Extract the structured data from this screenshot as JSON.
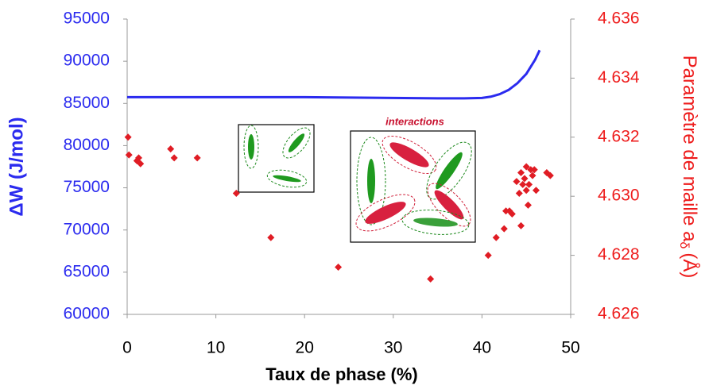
{
  "chart_data": {
    "type": "line",
    "xlabel": "Taux de phase (%)",
    "ylabel": "ΔW (J/mol)",
    "y2label": [
      "Paramètre de maille a",
      "δ",
      "(Å)"
    ],
    "annotation": "interactions",
    "xlim": [
      0,
      50
    ],
    "xticks": [
      0,
      10,
      20,
      30,
      40,
      50
    ],
    "ylim": [
      60000,
      95000
    ],
    "yticks": [
      60000,
      65000,
      70000,
      75000,
      80000,
      85000,
      90000,
      95000
    ],
    "y2lim": [
      4.626,
      4.636
    ],
    "y2ticks": [
      4.626,
      4.628,
      {
        "value": 4.63,
        "label": "4.630"
      },
      4.632,
      4.634,
      4.636
    ],
    "ycolor": "#2b2bef",
    "y2color": "#ee1c1c",
    "grid": false,
    "series": [
      {
        "type": "line",
        "axis": "y",
        "color": "#2b2bef",
        "x": [
          0,
          5,
          10,
          15,
          20,
          25,
          30,
          35,
          38,
          40,
          41,
          42,
          43,
          44,
          45,
          46,
          46.5
        ],
        "values": [
          85750,
          85750,
          85750,
          85750,
          85750,
          85700,
          85650,
          85600,
          85600,
          85650,
          85800,
          86100,
          86600,
          87400,
          88500,
          90200,
          91300
        ]
      },
      {
        "type": "scatter",
        "axis": "y2",
        "color": "#e01c24",
        "x": [
          0.1,
          0.2,
          1.1,
          1.3,
          1.5,
          4.9,
          5.3,
          7.9,
          12.3,
          16.2,
          23.8,
          34.2,
          40.7,
          41.6,
          42.5,
          42.7,
          43.1,
          43.4,
          44.4,
          44.2,
          44.4,
          44.8,
          45,
          45.3,
          45.7,
          45.9,
          46.1,
          45,
          45.5,
          47.3,
          47.7,
          43.9,
          44.6,
          45.2
        ],
        "values": [
          4.632,
          4.6314,
          4.6312,
          4.6313,
          4.6311,
          4.6316,
          4.6313,
          4.6313,
          4.6301,
          4.6286,
          4.6276,
          4.6272,
          4.628,
          4.6286,
          4.6289,
          4.6295,
          4.6295,
          4.6294,
          4.629,
          4.6301,
          4.6308,
          4.6306,
          4.6302,
          4.6304,
          4.6307,
          4.6309,
          4.6302,
          4.631,
          4.6309,
          4.6308,
          4.6307,
          4.6305,
          4.6304,
          4.6297
        ]
      }
    ]
  }
}
